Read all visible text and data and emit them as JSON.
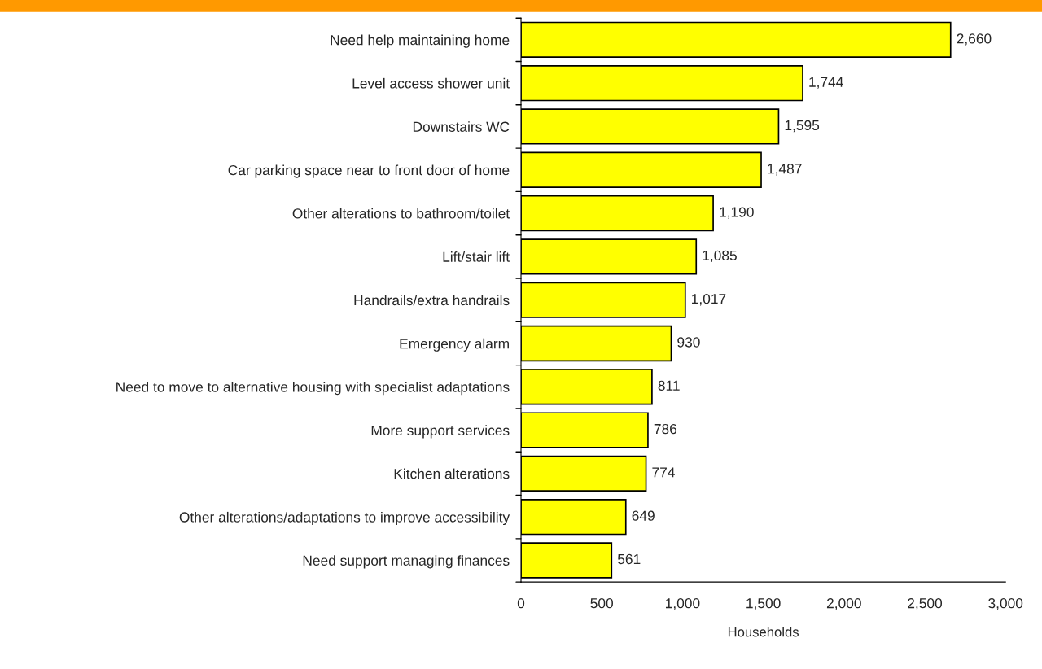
{
  "chart_data": {
    "type": "bar",
    "orientation": "horizontal",
    "categories": [
      "Need help maintaining home",
      "Level access shower unit",
      "Downstairs WC",
      "Car parking space near to front door of home",
      "Other alterations to bathroom/toilet",
      "Lift/stair lift",
      "Handrails/extra handrails",
      "Emergency alarm",
      "Need to move to alternative housing with specialist adaptations",
      "More support services",
      "Kitchen alterations",
      "Other alterations/adaptations to improve accessibility",
      "Need support managing finances"
    ],
    "values": [
      2660,
      1744,
      1595,
      1487,
      1190,
      1085,
      1017,
      930,
      811,
      786,
      774,
      649,
      561
    ],
    "value_labels": [
      "2,660",
      "1,744",
      "1,595",
      "1,487",
      "1,190",
      "1,085",
      "1,017",
      "930",
      "811",
      "786",
      "774",
      "649",
      "561"
    ],
    "color": "#ffff00",
    "xlabel": "Households",
    "xlim": [
      0,
      3000
    ],
    "xticks": [
      0,
      500,
      {
        "value": 1000,
        "label": "1,000"
      },
      {
        "value": 1500,
        "label": "1,500"
      },
      {
        "value": 2000,
        "label": "2,000"
      },
      {
        "value": 2500,
        "label": "2,500"
      },
      {
        "value": 3000,
        "label": "3,000"
      }
    ],
    "grid": false,
    "legend": false
  }
}
